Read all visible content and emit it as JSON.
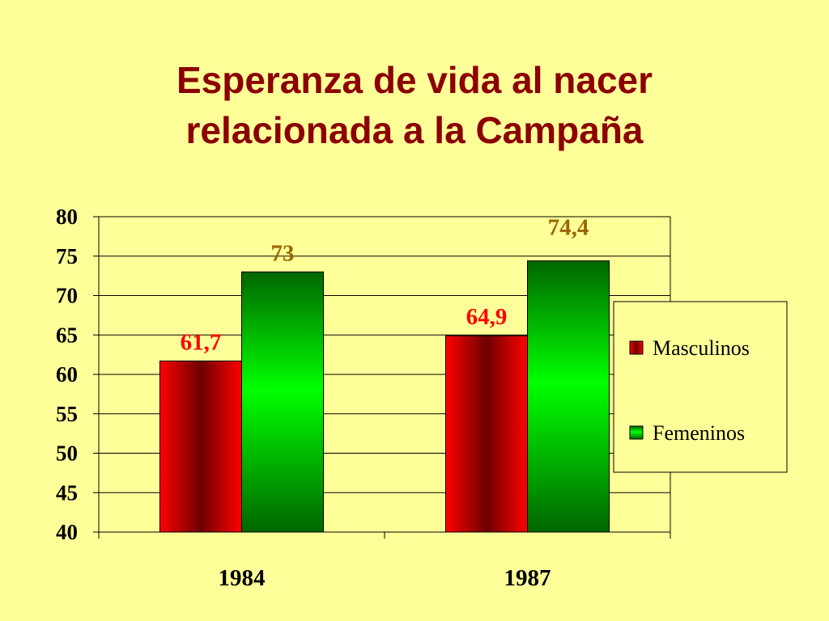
{
  "title_line1": "Esperanza de vida al nacer",
  "title_line2": "relacionada a la Campaña",
  "chart_data": {
    "type": "bar",
    "title": "Esperanza de vida al nacer relacionada a la Campaña",
    "categories": [
      "1984",
      "1987"
    ],
    "series": [
      {
        "name": "Masculinos",
        "values": [
          61.7,
          64.9
        ],
        "labels": [
          "61,7",
          "64,9"
        ],
        "color": "#e80000",
        "label_color": "#ff0000"
      },
      {
        "name": "Femeninos",
        "values": [
          73,
          74.4
        ],
        "labels": [
          "73",
          "74,4"
        ],
        "color": "#00e000",
        "label_color": "#996600"
      }
    ],
    "ylim": [
      40,
      80
    ],
    "yticks": [
      "80",
      "75",
      "70",
      "65",
      "60",
      "55",
      "50",
      "45",
      "40"
    ],
    "grid": true,
    "legend_position": "right",
    "colors": {
      "background": "#ffff99",
      "title": "#8b0000"
    }
  }
}
